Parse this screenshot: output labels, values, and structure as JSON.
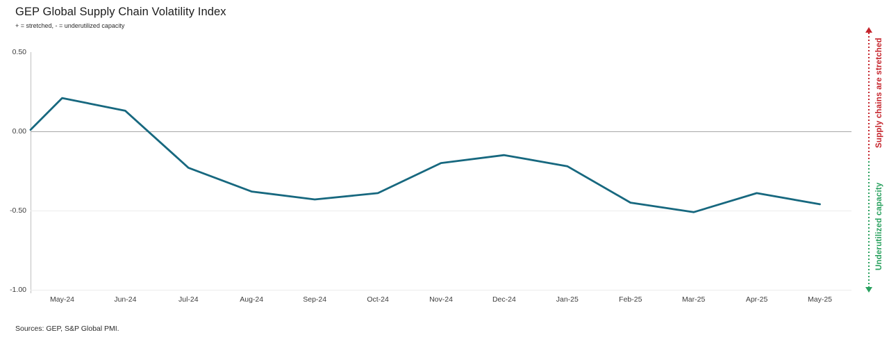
{
  "header": {
    "title": "GEP Global Supply Chain Volatility Index",
    "subtitle": "+ = stretched, - = underutilized capacity"
  },
  "annotations": {
    "stretched": {
      "label": "Supply chains are stretched",
      "color": "#c5242c",
      "direction": "up"
    },
    "underutilized": {
      "label": "Underutilized capacity",
      "color": "#2aa15f",
      "direction": "down"
    }
  },
  "footer": {
    "sources": "Sources: GEP, S&P Global PMI."
  },
  "chart_data": {
    "type": "line",
    "title": "GEP Global Supply Chain Volatility Index",
    "categories": [
      "May-24",
      "Jun-24",
      "Jul-24",
      "Aug-24",
      "Sep-24",
      "Oct-24",
      "Nov-24",
      "Dec-24",
      "Jan-25",
      "Feb-25",
      "Mar-25",
      "Apr-25",
      "May-25"
    ],
    "values": [
      0.21,
      0.13,
      -0.23,
      -0.38,
      -0.43,
      -0.39,
      -0.2,
      -0.15,
      -0.22,
      -0.45,
      -0.51,
      -0.39,
      -0.46
    ],
    "axis_start_value": 0.01,
    "xlabel": "",
    "ylabel": "",
    "ylim": [
      -1.0,
      0.5
    ],
    "yticks": [
      {
        "value": 0.5,
        "label": "0.50"
      },
      {
        "value": 0.0,
        "label": "0.00"
      },
      {
        "value": -0.5,
        "label": "-0.50"
      },
      {
        "value": -1.0,
        "label": "-1.00"
      }
    ],
    "gridlines": [
      {
        "value": 0.0,
        "color": "#a8a8a8"
      },
      {
        "value": -0.5,
        "color": "#ececec"
      },
      {
        "value": -1.0,
        "color": "#ececec"
      }
    ],
    "line_color": "#17687f",
    "axis_color": "#bfbfbf",
    "grid": "horizontal only",
    "legend_position": "none"
  }
}
